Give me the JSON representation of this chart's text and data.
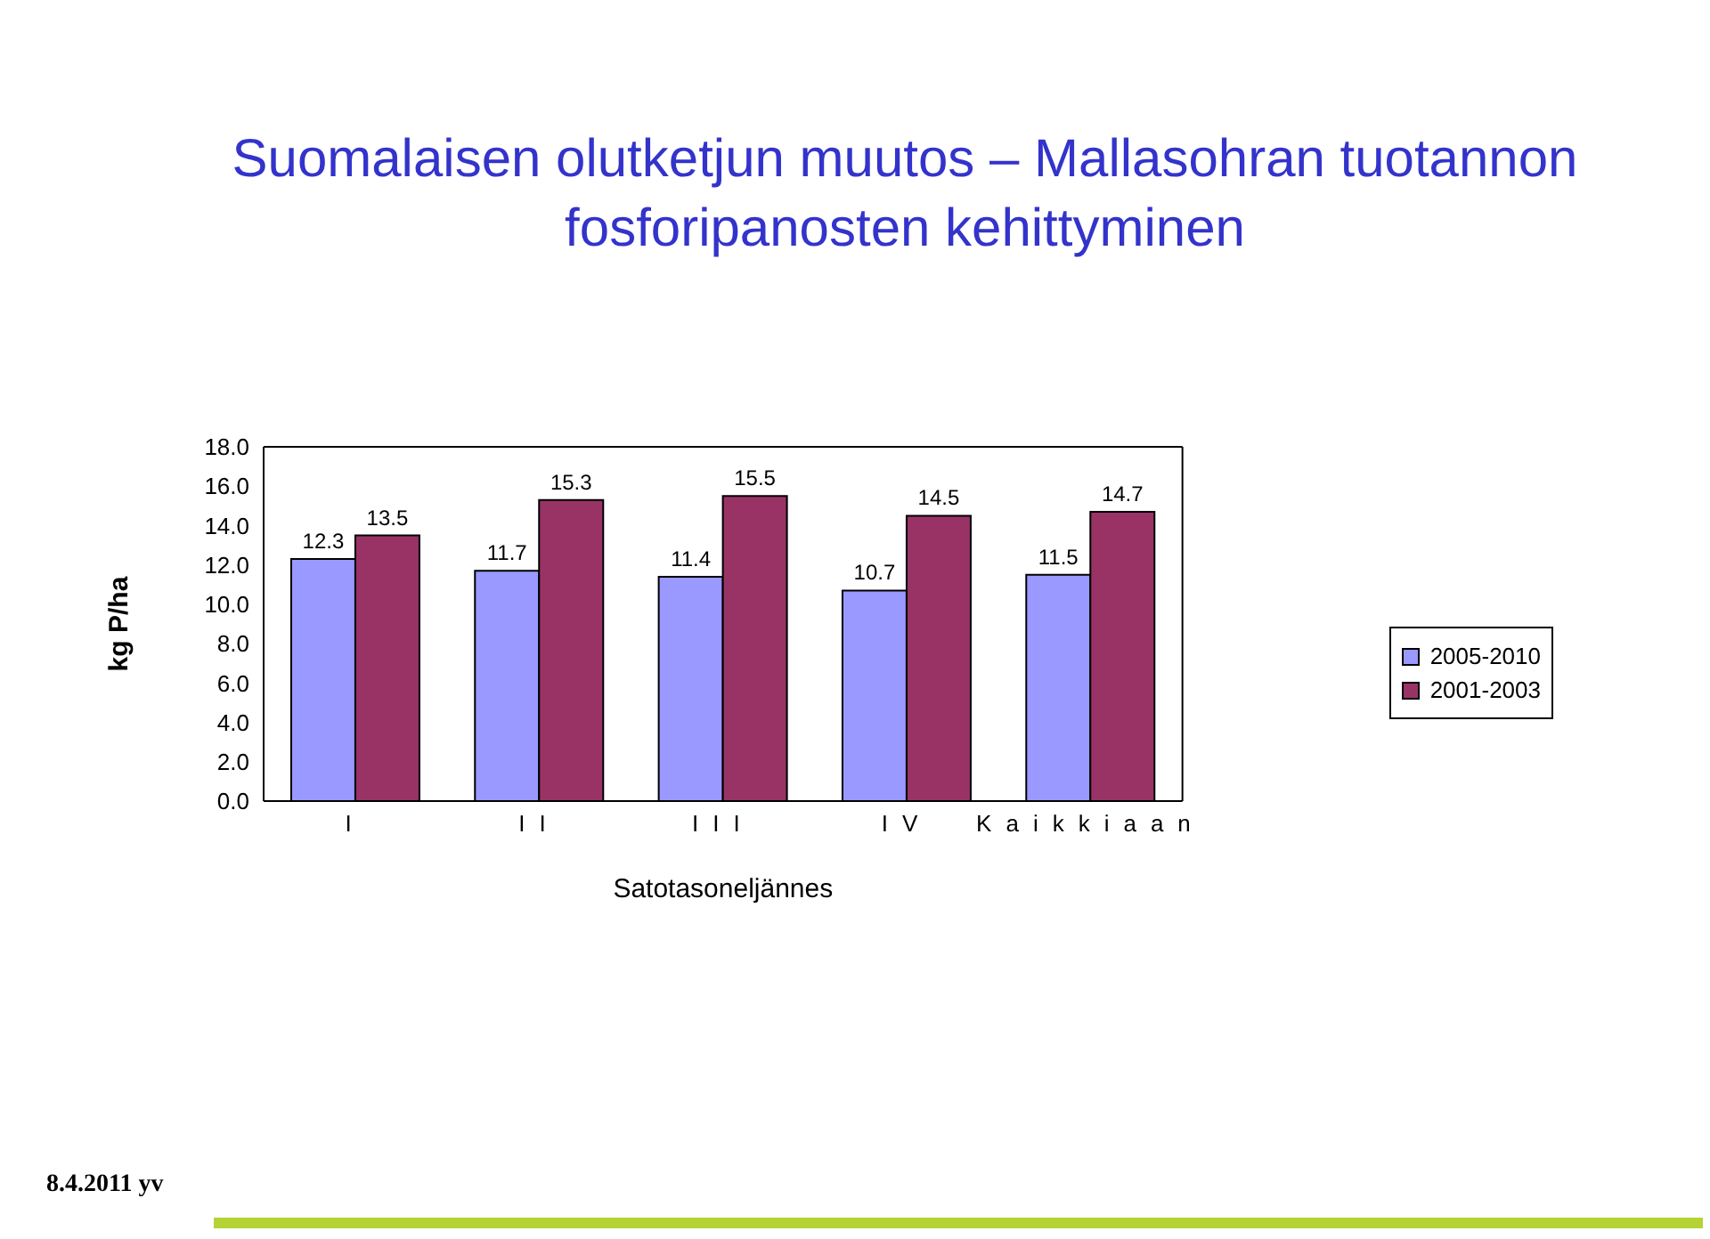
{
  "chart_data": {
    "type": "bar",
    "title": "Suomalaisen olutketjun muutos – Mallasohran tuotannon fosforipanosten kehittyminen",
    "xlabel": "Satotasoneljännes",
    "ylabel": "kg P/ha",
    "categories": [
      "I",
      "II",
      "III",
      "IV",
      "Kaikkiaan"
    ],
    "series": [
      {
        "name": "2005-2010",
        "color": "#9999ff",
        "values": [
          12.3,
          11.7,
          11.4,
          10.7,
          11.5
        ]
      },
      {
        "name": "2001-2003",
        "color": "#993366",
        "values": [
          13.5,
          15.3,
          15.5,
          14.5,
          14.7
        ]
      }
    ],
    "ylim": [
      0,
      18
    ],
    "yticks": [
      {
        "value": 0,
        "label": "0.0"
      },
      {
        "value": 2,
        "label": "2.0"
      },
      {
        "value": 4,
        "label": "4.0"
      },
      {
        "value": 6,
        "label": "6.0"
      },
      {
        "value": 8,
        "label": "8.0"
      },
      {
        "value": 10,
        "label": "10.0"
      },
      {
        "value": 12,
        "label": "12.0"
      },
      {
        "value": 14,
        "label": "14.0"
      },
      {
        "value": 16,
        "label": "16.0"
      },
      {
        "value": 18,
        "label": "18.0"
      }
    ],
    "data_labels": true,
    "legend": "right",
    "grid": false,
    "annotations": [
      "8.4.2011 yv"
    ]
  }
}
